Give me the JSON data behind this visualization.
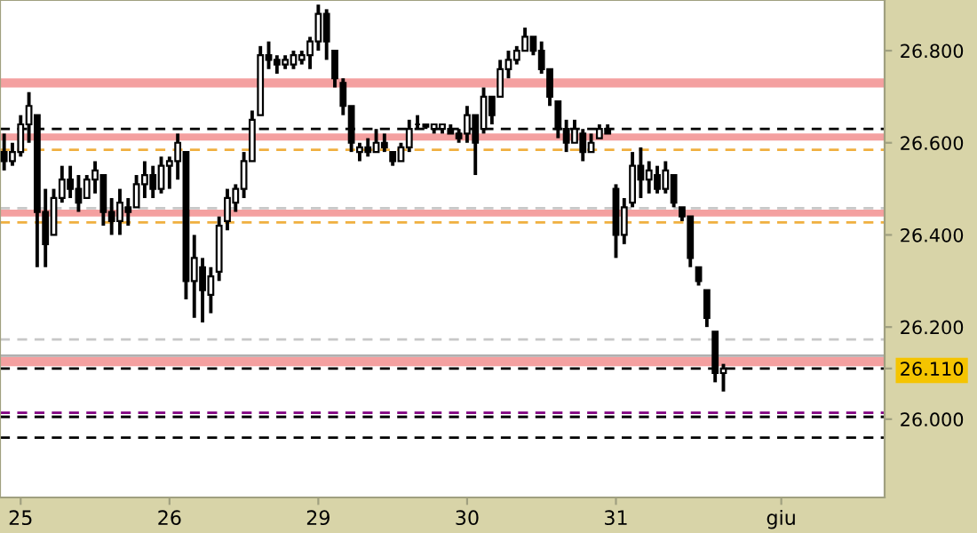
{
  "chart_data": {
    "type": "candlestick",
    "categories": [
      null,
      null,
      "25",
      null,
      null,
      null,
      null,
      null,
      null,
      null,
      null,
      null,
      null,
      null,
      null,
      null,
      null,
      null,
      null,
      null,
      "26",
      null,
      null,
      null,
      null,
      null,
      null,
      null,
      null,
      null,
      null,
      null,
      null,
      null,
      null,
      null,
      null,
      null,
      "29",
      null,
      null,
      null,
      null,
      null,
      null,
      null,
      null,
      null,
      null,
      null,
      null,
      null,
      null,
      null,
      null,
      null,
      "30",
      null,
      null,
      null,
      null,
      null,
      null,
      null,
      null,
      null,
      null,
      null,
      null,
      null,
      null,
      null,
      null,
      null,
      "31",
      null,
      null,
      null,
      null,
      null,
      null,
      null,
      null,
      null,
      null,
      null,
      null,
      null,
      null,
      null,
      null,
      null,
      null,
      null,
      "giu",
      null,
      null,
      null,
      null,
      null,
      null,
      null,
      null,
      null,
      null,
      null,
      null
    ],
    "ohlc": [
      [
        26.58,
        26.62,
        26.54,
        26.56
      ],
      [
        26.56,
        26.6,
        26.55,
        26.58
      ],
      [
        26.58,
        26.66,
        26.57,
        26.64
      ],
      [
        26.64,
        26.71,
        26.6,
        26.68
      ],
      [
        26.66,
        26.66,
        26.33,
        26.45
      ],
      [
        26.45,
        26.5,
        26.33,
        26.38
      ],
      [
        26.4,
        26.5,
        26.4,
        26.48
      ],
      [
        26.48,
        26.55,
        26.47,
        26.52
      ],
      [
        26.52,
        26.55,
        26.48,
        26.5
      ],
      [
        26.5,
        26.53,
        26.45,
        26.47
      ],
      [
        26.48,
        26.53,
        26.48,
        26.52
      ],
      [
        26.52,
        26.56,
        26.49,
        26.54
      ],
      [
        26.53,
        26.53,
        26.42,
        26.45
      ],
      [
        26.45,
        26.48,
        26.4,
        26.43
      ],
      [
        26.43,
        26.5,
        26.4,
        26.47
      ],
      [
        26.46,
        26.48,
        26.42,
        26.45
      ],
      [
        26.46,
        26.53,
        26.46,
        26.51
      ],
      [
        26.51,
        26.56,
        26.48,
        26.53
      ],
      [
        26.53,
        26.55,
        26.48,
        26.5
      ],
      [
        26.5,
        26.57,
        26.49,
        26.55
      ],
      [
        26.55,
        26.57,
        26.5,
        26.56
      ],
      [
        26.56,
        26.62,
        26.52,
        26.6
      ],
      [
        26.58,
        26.58,
        26.26,
        26.3
      ],
      [
        26.3,
        26.4,
        26.22,
        26.35
      ],
      [
        26.33,
        26.35,
        26.21,
        26.28
      ],
      [
        26.27,
        26.33,
        26.23,
        26.31
      ],
      [
        26.32,
        26.44,
        26.3,
        26.42
      ],
      [
        26.43,
        26.5,
        26.41,
        26.48
      ],
      [
        26.47,
        26.51,
        26.45,
        26.5
      ],
      [
        26.5,
        26.58,
        26.48,
        26.56
      ],
      [
        26.56,
        26.67,
        26.56,
        26.65
      ],
      [
        26.66,
        26.81,
        26.66,
        26.79
      ],
      [
        26.79,
        26.82,
        26.76,
        26.78
      ],
      [
        26.78,
        26.79,
        26.75,
        26.77
      ],
      [
        26.77,
        26.79,
        26.76,
        26.78
      ],
      [
        26.77,
        26.8,
        26.76,
        26.79
      ],
      [
        26.78,
        26.8,
        26.77,
        26.79
      ],
      [
        26.79,
        26.83,
        26.76,
        26.82
      ],
      [
        26.82,
        26.9,
        26.8,
        26.88
      ],
      [
        26.88,
        26.89,
        26.78,
        26.82
      ],
      [
        26.8,
        26.8,
        26.72,
        26.74
      ],
      [
        26.73,
        26.74,
        26.66,
        26.68
      ],
      [
        26.68,
        26.68,
        26.58,
        26.6
      ],
      [
        26.58,
        26.6,
        26.56,
        26.59
      ],
      [
        26.59,
        26.61,
        26.57,
        26.58
      ],
      [
        26.58,
        26.63,
        26.58,
        26.6
      ],
      [
        26.6,
        26.62,
        26.58,
        26.59
      ],
      [
        26.58,
        26.58,
        26.55,
        26.56
      ],
      [
        26.56,
        26.6,
        26.56,
        26.59
      ],
      [
        26.59,
        26.65,
        26.58,
        26.63
      ],
      [
        26.64,
        26.66,
        26.63,
        26.64
      ],
      [
        26.64,
        26.64,
        26.63,
        26.635
      ],
      [
        26.63,
        26.64,
        26.62,
        26.64
      ],
      [
        26.63,
        26.64,
        26.62,
        26.64
      ],
      [
        26.63,
        26.64,
        26.62,
        26.62
      ],
      [
        26.62,
        26.63,
        26.6,
        26.61
      ],
      [
        26.62,
        26.68,
        26.6,
        26.66
      ],
      [
        26.66,
        26.66,
        26.53,
        26.6
      ],
      [
        26.63,
        26.72,
        26.62,
        26.7
      ],
      [
        26.7,
        26.7,
        26.64,
        26.66
      ],
      [
        26.7,
        26.78,
        26.7,
        26.76
      ],
      [
        26.76,
        26.8,
        26.74,
        26.78
      ],
      [
        26.78,
        26.81,
        26.77,
        26.8
      ],
      [
        26.8,
        26.85,
        26.8,
        26.83
      ],
      [
        26.83,
        26.83,
        26.79,
        26.8
      ],
      [
        26.8,
        26.82,
        26.75,
        26.76
      ],
      [
        26.76,
        26.76,
        26.68,
        26.7
      ],
      [
        26.69,
        26.69,
        26.61,
        26.63
      ],
      [
        26.63,
        26.65,
        26.58,
        26.6
      ],
      [
        26.6,
        26.65,
        26.6,
        26.63
      ],
      [
        26.62,
        26.63,
        26.56,
        26.58
      ],
      [
        26.58,
        26.62,
        26.58,
        26.6
      ],
      [
        26.61,
        26.64,
        26.61,
        26.63
      ],
      [
        26.63,
        26.64,
        26.62,
        26.62
      ],
      [
        26.5,
        26.51,
        26.35,
        26.4
      ],
      [
        26.4,
        26.48,
        26.38,
        26.46
      ],
      [
        26.47,
        26.58,
        26.46,
        26.55
      ],
      [
        26.55,
        26.59,
        26.48,
        26.52
      ],
      [
        26.52,
        26.56,
        26.49,
        26.54
      ],
      [
        26.53,
        26.55,
        26.49,
        26.5
      ],
      [
        26.5,
        26.56,
        26.49,
        26.54
      ],
      [
        26.53,
        26.53,
        26.46,
        26.47
      ],
      [
        26.46,
        26.46,
        26.43,
        26.44
      ],
      [
        26.44,
        26.44,
        26.33,
        26.35
      ],
      [
        26.33,
        26.33,
        26.29,
        26.3
      ],
      [
        26.28,
        26.28,
        26.2,
        26.22
      ],
      [
        26.19,
        26.19,
        26.08,
        26.1
      ],
      [
        26.1,
        26.12,
        26.06,
        26.11
      ],
      null,
      null,
      null,
      null,
      null,
      null,
      null,
      null,
      null,
      null,
      null,
      null,
      null,
      null,
      null,
      null,
      null,
      null,
      null
    ],
    "color": "#000000",
    "ylim": [
      25.83,
      26.91
    ],
    "yticks": [
      {
        "value": 26.0,
        "label": "26.000"
      },
      {
        "value": 26.11,
        "label": "26.110"
      },
      {
        "value": 26.2,
        "label": "26.200"
      },
      {
        "value": 26.4,
        "label": "26.400"
      },
      {
        "value": 26.6,
        "label": "26.600"
      },
      {
        "value": 26.8,
        "label": "26.800"
      }
    ],
    "ref_lines": [
      {
        "axis": "y",
        "value": 26.63,
        "color": "#000000",
        "line_style": "dashed"
      },
      {
        "axis": "y",
        "value": 26.585,
        "color": "#f0b040",
        "line_style": "dashed"
      },
      {
        "axis": "y",
        "value": 26.458,
        "color": "#c8c8c8",
        "line_style": "dashed"
      },
      {
        "axis": "y",
        "value": 26.427,
        "color": "#f0b040",
        "line_style": "dashed"
      },
      {
        "axis": "y",
        "value": 26.173,
        "color": "#c8c8c8",
        "line_style": "dashed"
      },
      {
        "axis": "y",
        "value": 26.138,
        "color": "#b0b0b0",
        "line_style": "solid"
      },
      {
        "axis": "y",
        "value": 26.11,
        "color": "#000000",
        "line_style": "dashed"
      },
      {
        "axis": "y",
        "value": 26.014,
        "color": "#800080",
        "line_style": "dashed"
      },
      {
        "axis": "y",
        "value": 26.005,
        "color": "#000000",
        "line_style": "dashed"
      },
      {
        "axis": "y",
        "value": 25.96,
        "color": "#000000",
        "line_style": "dashed"
      }
    ],
    "bands": [
      {
        "axis": "y",
        "from": 26.72,
        "to": 26.74,
        "color": "#f4a0a0"
      },
      {
        "axis": "y",
        "from": 26.605,
        "to": 26.62,
        "color": "#f4a0a0"
      },
      {
        "axis": "y",
        "from": 26.44,
        "to": 26.455,
        "color": "#f4a0a0"
      },
      {
        "axis": "y",
        "from": 26.115,
        "to": 26.135,
        "color": "#f4a0a0"
      }
    ],
    "grid": false
  }
}
